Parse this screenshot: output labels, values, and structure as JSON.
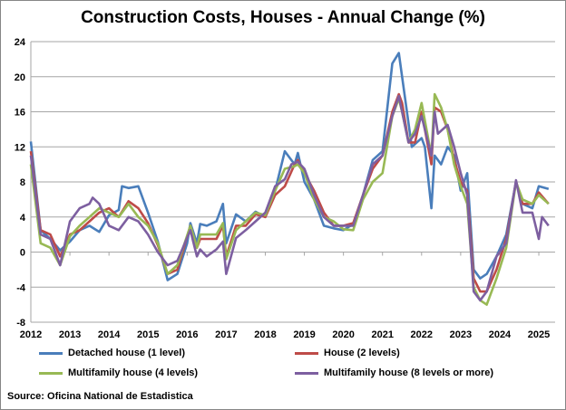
{
  "chart_data": {
    "type": "line",
    "title": "Construction Costs, Houses - Annual Change (%)",
    "source": "Source: Oficina National de Estadistica",
    "ylim": [
      -8,
      24
    ],
    "yticks": [
      -8,
      -4,
      0,
      4,
      8,
      12,
      16,
      20,
      24
    ],
    "xticks": [
      "2012",
      "2013",
      "2014",
      "2015",
      "2016",
      "2017",
      "2018",
      "2019",
      "2020",
      "2021",
      "2022",
      "2023",
      "2024",
      "2025"
    ],
    "grid": true,
    "legend_placement": "bottom",
    "series": [
      {
        "name": "Detached house (1 level)",
        "color": "#4a7ebb",
        "points": [
          [
            "2012-01",
            12.6
          ],
          [
            "2012-04",
            2.5
          ],
          [
            "2012-07",
            1.5
          ],
          [
            "2012-10",
            0.2
          ],
          [
            "2013-01",
            1.2
          ],
          [
            "2013-04",
            2.5
          ],
          [
            "2013-07",
            3
          ],
          [
            "2013-10",
            2.3
          ],
          [
            "2014-01",
            4.2
          ],
          [
            "2014-04",
            4.8
          ],
          [
            "2014-05",
            7.5
          ],
          [
            "2014-07",
            7.3
          ],
          [
            "2014-10",
            7.5
          ],
          [
            "2015-01",
            4.5
          ],
          [
            "2015-04",
            1.2
          ],
          [
            "2015-07",
            -3.2
          ],
          [
            "2015-10",
            -2.5
          ],
          [
            "2016-01",
            1
          ],
          [
            "2016-02",
            3.3
          ],
          [
            "2016-04",
            1
          ],
          [
            "2016-05",
            3.2
          ],
          [
            "2016-07",
            3
          ],
          [
            "2016-10",
            3.5
          ],
          [
            "2016-12",
            5.5
          ],
          [
            "2017-01",
            1
          ],
          [
            "2017-04",
            4.3
          ],
          [
            "2017-07",
            3.5
          ],
          [
            "2017-10",
            4.6
          ],
          [
            "2018-01",
            4
          ],
          [
            "2018-04",
            7
          ],
          [
            "2018-07",
            11.5
          ],
          [
            "2018-10",
            10
          ],
          [
            "2018-11",
            11.3
          ],
          [
            "2019-01",
            8
          ],
          [
            "2019-04",
            6
          ],
          [
            "2019-07",
            3
          ],
          [
            "2019-10",
            2.7
          ],
          [
            "2020-01",
            2.5
          ],
          [
            "2020-04",
            3.2
          ],
          [
            "2020-07",
            6.5
          ],
          [
            "2020-10",
            10.5
          ],
          [
            "2021-01",
            11.5
          ],
          [
            "2021-04",
            21.5
          ],
          [
            "2021-06",
            22.7
          ],
          [
            "2021-07",
            20
          ],
          [
            "2021-10",
            12
          ],
          [
            "2022-01",
            13
          ],
          [
            "2022-02",
            12
          ],
          [
            "2022-04",
            5
          ],
          [
            "2022-05",
            11
          ],
          [
            "2022-07",
            10
          ],
          [
            "2022-09",
            12
          ],
          [
            "2022-11",
            11
          ],
          [
            "2023-01",
            7
          ],
          [
            "2023-03",
            9
          ],
          [
            "2023-05",
            -2
          ],
          [
            "2023-07",
            -3
          ],
          [
            "2023-09",
            -2.5
          ],
          [
            "2023-12",
            -0.5
          ],
          [
            "2024-03",
            2
          ],
          [
            "2024-06",
            8
          ],
          [
            "2024-08",
            5.5
          ],
          [
            "2024-11",
            5
          ],
          [
            "2025-01",
            7.5
          ],
          [
            "2025-04",
            7.2
          ]
        ]
      },
      {
        "name": "House (2 levels)",
        "color": "#be4b48",
        "points": [
          [
            "2012-01",
            11.5
          ],
          [
            "2012-04",
            2.5
          ],
          [
            "2012-07",
            2
          ],
          [
            "2012-10",
            -0.5
          ],
          [
            "2013-01",
            2
          ],
          [
            "2013-04",
            2.5
          ],
          [
            "2013-07",
            3.5
          ],
          [
            "2013-10",
            4.5
          ],
          [
            "2014-01",
            5
          ],
          [
            "2014-04",
            4
          ],
          [
            "2014-07",
            5.8
          ],
          [
            "2014-10",
            5
          ],
          [
            "2015-01",
            3.3
          ],
          [
            "2015-04",
            0.8
          ],
          [
            "2015-07",
            -2.5
          ],
          [
            "2015-10",
            -2
          ],
          [
            "2016-02",
            3
          ],
          [
            "2016-04",
            0.5
          ],
          [
            "2016-05",
            1.5
          ],
          [
            "2016-10",
            1.5
          ],
          [
            "2016-12",
            3
          ],
          [
            "2017-01",
            -0.5
          ],
          [
            "2017-04",
            3
          ],
          [
            "2017-07",
            3
          ],
          [
            "2017-10",
            4.3
          ],
          [
            "2018-01",
            4
          ],
          [
            "2018-04",
            6.5
          ],
          [
            "2018-07",
            7.5
          ],
          [
            "2018-10",
            10
          ],
          [
            "2018-11",
            10.5
          ],
          [
            "2019-01",
            9
          ],
          [
            "2019-04",
            7
          ],
          [
            "2019-07",
            4.5
          ],
          [
            "2019-10",
            3
          ],
          [
            "2020-01",
            3
          ],
          [
            "2020-04",
            3.3
          ],
          [
            "2020-07",
            6.5
          ],
          [
            "2020-10",
            9.5
          ],
          [
            "2021-01",
            11
          ],
          [
            "2021-04",
            16
          ],
          [
            "2021-06",
            18
          ],
          [
            "2021-07",
            17
          ],
          [
            "2021-09",
            12.5
          ],
          [
            "2021-11",
            12.5
          ],
          [
            "2022-01",
            16
          ],
          [
            "2022-04",
            10
          ],
          [
            "2022-05",
            16.5
          ],
          [
            "2022-07",
            16
          ],
          [
            "2022-09",
            14
          ],
          [
            "2022-11",
            10.5
          ],
          [
            "2023-01",
            8
          ],
          [
            "2023-03",
            7
          ],
          [
            "2023-05",
            -3
          ],
          [
            "2023-07",
            -4.5
          ],
          [
            "2023-09",
            -4.5
          ],
          [
            "2023-12",
            -2
          ],
          [
            "2024-03",
            1.5
          ],
          [
            "2024-06",
            8
          ],
          [
            "2024-08",
            5.5
          ],
          [
            "2024-11",
            5.5
          ],
          [
            "2025-01",
            6.8
          ],
          [
            "2025-04",
            5.5
          ]
        ]
      },
      {
        "name": "Multifamily house (4 levels)",
        "color": "#98b954",
        "points": [
          [
            "2012-01",
            10
          ],
          [
            "2012-04",
            1
          ],
          [
            "2012-07",
            0.5
          ],
          [
            "2012-10",
            -1.5
          ],
          [
            "2013-01",
            1.8
          ],
          [
            "2013-04",
            3
          ],
          [
            "2013-07",
            4
          ],
          [
            "2013-10",
            5
          ],
          [
            "2014-01",
            4.5
          ],
          [
            "2014-04",
            4
          ],
          [
            "2014-07",
            5.5
          ],
          [
            "2014-10",
            4
          ],
          [
            "2015-01",
            3
          ],
          [
            "2015-04",
            1
          ],
          [
            "2015-07",
            -2.5
          ],
          [
            "2015-10",
            -1.5
          ],
          [
            "2016-02",
            3
          ],
          [
            "2016-04",
            0.5
          ],
          [
            "2016-05",
            2
          ],
          [
            "2016-10",
            2
          ],
          [
            "2016-12",
            3.3
          ],
          [
            "2017-01",
            -0.8
          ],
          [
            "2017-04",
            2.5
          ],
          [
            "2017-07",
            3.5
          ],
          [
            "2017-10",
            4.5
          ],
          [
            "2018-01",
            4.2
          ],
          [
            "2018-04",
            7
          ],
          [
            "2018-07",
            9.5
          ],
          [
            "2018-10",
            9.8
          ],
          [
            "2018-11",
            10
          ],
          [
            "2019-01",
            9
          ],
          [
            "2019-04",
            6
          ],
          [
            "2019-07",
            4
          ],
          [
            "2019-10",
            3.5
          ],
          [
            "2020-01",
            2.6
          ],
          [
            "2020-04",
            2.5
          ],
          [
            "2020-07",
            6
          ],
          [
            "2020-10",
            8
          ],
          [
            "2021-01",
            9
          ],
          [
            "2021-04",
            15.5
          ],
          [
            "2021-06",
            17.5
          ],
          [
            "2021-07",
            16
          ],
          [
            "2021-09",
            12.5
          ],
          [
            "2021-11",
            14
          ],
          [
            "2022-01",
            17
          ],
          [
            "2022-04",
            11
          ],
          [
            "2022-05",
            18
          ],
          [
            "2022-07",
            16.5
          ],
          [
            "2022-09",
            14
          ],
          [
            "2022-11",
            10
          ],
          [
            "2023-01",
            7.5
          ],
          [
            "2023-03",
            5.5
          ],
          [
            "2023-05",
            -4
          ],
          [
            "2023-07",
            -5.5
          ],
          [
            "2023-09",
            -6
          ],
          [
            "2023-12",
            -3
          ],
          [
            "2024-03",
            0.5
          ],
          [
            "2024-06",
            8
          ],
          [
            "2024-08",
            6
          ],
          [
            "2024-11",
            5.5
          ],
          [
            "2025-01",
            6.5
          ],
          [
            "2025-04",
            5.5
          ]
        ]
      },
      {
        "name": "Multifamily house (8 levels or more)",
        "color": "#7d5fa0",
        "points": [
          [
            "2012-01",
            11
          ],
          [
            "2012-04",
            2
          ],
          [
            "2012-07",
            1.5
          ],
          [
            "2012-10",
            -1.5
          ],
          [
            "2013-01",
            3.5
          ],
          [
            "2013-04",
            5
          ],
          [
            "2013-07",
            5.5
          ],
          [
            "2013-08",
            6.2
          ],
          [
            "2013-10",
            5.5
          ],
          [
            "2014-01",
            3
          ],
          [
            "2014-04",
            2.5
          ],
          [
            "2014-07",
            4
          ],
          [
            "2014-10",
            3.5
          ],
          [
            "2015-01",
            2
          ],
          [
            "2015-04",
            0
          ],
          [
            "2015-07",
            -1.5
          ],
          [
            "2015-10",
            -1
          ],
          [
            "2016-02",
            2.5
          ],
          [
            "2016-04",
            -0.5
          ],
          [
            "2016-05",
            0.3
          ],
          [
            "2016-07",
            -0.5
          ],
          [
            "2016-10",
            0.3
          ],
          [
            "2016-12",
            1.2
          ],
          [
            "2017-01",
            -2.5
          ],
          [
            "2017-04",
            1.6
          ],
          [
            "2017-07",
            2.5
          ],
          [
            "2017-10",
            3.5
          ],
          [
            "2018-01",
            4.5
          ],
          [
            "2018-04",
            7.5
          ],
          [
            "2018-07",
            8.3
          ],
          [
            "2018-09",
            10
          ],
          [
            "2018-11",
            10.3
          ],
          [
            "2019-01",
            9.5
          ],
          [
            "2019-04",
            6.5
          ],
          [
            "2019-07",
            4
          ],
          [
            "2019-10",
            3
          ],
          [
            "2020-01",
            3
          ],
          [
            "2020-04",
            3
          ],
          [
            "2020-07",
            6.5
          ],
          [
            "2020-10",
            10
          ],
          [
            "2021-01",
            11
          ],
          [
            "2021-04",
            15.5
          ],
          [
            "2021-06",
            17.8
          ],
          [
            "2021-07",
            16
          ],
          [
            "2021-09",
            12.5
          ],
          [
            "2021-11",
            13.5
          ],
          [
            "2022-01",
            15.5
          ],
          [
            "2022-04",
            11
          ],
          [
            "2022-05",
            16
          ],
          [
            "2022-06",
            13.5
          ],
          [
            "2022-09",
            14.5
          ],
          [
            "2022-11",
            12
          ],
          [
            "2023-01",
            9
          ],
          [
            "2023-03",
            6.5
          ],
          [
            "2023-05",
            -4.5
          ],
          [
            "2023-07",
            -5.5
          ],
          [
            "2023-09",
            -4.5
          ],
          [
            "2023-12",
            -0.5
          ],
          [
            "2024-03",
            1
          ],
          [
            "2024-06",
            8.2
          ],
          [
            "2024-08",
            4.5
          ],
          [
            "2024-11",
            4.5
          ],
          [
            "2025-01",
            1.5
          ],
          [
            "2025-02",
            4
          ],
          [
            "2025-04",
            3
          ]
        ]
      }
    ]
  }
}
